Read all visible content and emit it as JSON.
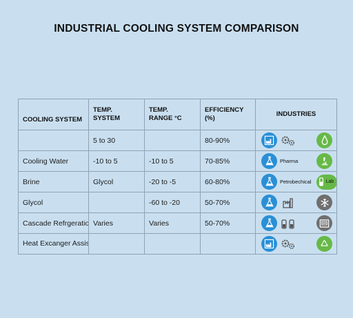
{
  "title": "INDUSTRIAL COOLING SYSTEM COMPARISON",
  "columns": {
    "system": "COOLING SYSTEM",
    "temp_system_1": "TEMP.",
    "temp_system_2": "SYSTEM",
    "temp_range_1": "TEMP.",
    "temp_range_2": "RANGE °C",
    "efficiency_1": "EFFICIENCY",
    "efficiency_2": "(%)",
    "industries": "INDUSTRIES"
  },
  "rows": [
    {
      "system": "",
      "temp_system": "5 to 30",
      "temp_range": "",
      "efficiency": "80-90%"
    },
    {
      "system": "Cooling Water",
      "temp_system": "-10 to 5",
      "temp_range": "-10 to 5",
      "efficiency": "70-85%",
      "industry_label": "Pharma"
    },
    {
      "system": "Brine",
      "temp_system": "Glycol",
      "temp_range": "-20 to -5",
      "efficiency": "60-80%",
      "industry_label": "Petrobechical",
      "industry_label_2": "Lab"
    },
    {
      "system": "Glycol",
      "temp_system": "",
      "temp_range": "-60 to -20",
      "efficiency": "50-70%"
    },
    {
      "system": "Cascade Refrgeration",
      "temp_system": "Varies",
      "temp_range": "Varies",
      "efficiency": "50-70%"
    },
    {
      "system": "Heat Excanger Assisted",
      "temp_system": "",
      "temp_range": "",
      "efficiency": ""
    }
  ],
  "colors": {
    "background": "#c9dff0",
    "icon_blue": "#2a8fd6",
    "icon_green": "#67b947",
    "icon_gray": "#6f6f6f"
  },
  "icons": {
    "row1": [
      "factory-icon",
      "gears-icon",
      "water-drop-icon"
    ],
    "row2": [
      "flask-icon",
      "microscope-icon"
    ],
    "row3": [
      "flask-icon",
      "vial-icon"
    ],
    "row4": [
      "flask-icon",
      "factory-building-icon",
      "snowflake-icon"
    ],
    "row5": [
      "flask-icon",
      "vials-icon",
      "machine-icon"
    ],
    "row6": [
      "factory-icon",
      "gears-icon",
      "recycle-icon"
    ]
  }
}
